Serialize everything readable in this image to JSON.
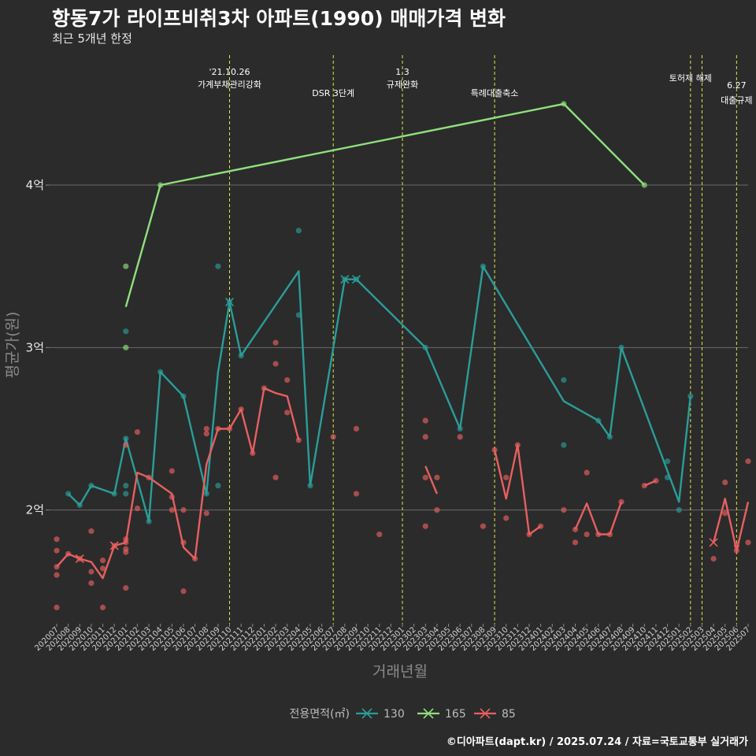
{
  "chart_data": {
    "type": "line",
    "title": "항동7가 라이프비취3차 아파트(1990) 매매가격 변화",
    "subtitle": "최근 5개년 한정",
    "xlabel": "거래년월",
    "ylabel": "평균가(원)",
    "y_ticks": [
      {
        "value": 2.0,
        "label": "2억"
      },
      {
        "value": 3.0,
        "label": "3억"
      },
      {
        "value": 4.0,
        "label": "4억"
      }
    ],
    "ylim": [
      1.3,
      4.8
    ],
    "ylim_unit": "억원",
    "categories": [
      "202007",
      "202008",
      "202009",
      "202010",
      "202011",
      "202012",
      "202101",
      "202102",
      "202103",
      "202104",
      "202105",
      "202106",
      "202107",
      "202108",
      "202109",
      "202110",
      "202111",
      "202112",
      "202201",
      "202202",
      "202203",
      "202204",
      "202205",
      "202206",
      "202207",
      "202208",
      "202209",
      "202210",
      "202211",
      "202212",
      "202301",
      "202302",
      "202303",
      "202304",
      "202305",
      "202306",
      "202307",
      "202308",
      "202309",
      "202310",
      "202311",
      "202312",
      "202401",
      "202402",
      "202403",
      "202404",
      "202405",
      "202406",
      "202407",
      "202408",
      "202409",
      "202410",
      "202411",
      "202412",
      "202501",
      "202502",
      "202503",
      "202504",
      "202505",
      "202506",
      "202507"
    ],
    "legend": {
      "title": "전용면적(㎡)",
      "position": "bottom"
    },
    "grid": true,
    "series": [
      {
        "name": "130",
        "color": "#2a9d99",
        "segments": [
          [
            [
              "202008",
              2.1
            ],
            [
              "202009",
              2.03
            ],
            [
              "202010",
              2.15
            ],
            [
              "202012",
              2.1
            ],
            [
              "202101",
              2.44
            ],
            [
              "202103",
              1.93
            ],
            [
              "202104",
              2.85
            ],
            [
              "202106",
              2.7
            ],
            [
              "202108",
              2.1
            ],
            [
              "202109",
              2.85
            ],
            [
              "202110",
              3.28
            ],
            [
              "202111",
              2.95
            ],
            [
              "202204",
              3.47
            ],
            [
              "202205",
              2.15
            ],
            [
              "202208",
              3.42
            ],
            [
              "202209",
              3.42
            ],
            [
              "202303",
              3.0
            ],
            [
              "202306",
              2.5
            ],
            [
              "202308",
              3.5
            ],
            [
              "202403",
              2.67
            ],
            [
              "202406",
              2.55
            ],
            [
              "202407",
              2.45
            ],
            [
              "202408",
              3.0
            ],
            [
              "202501",
              2.05
            ],
            [
              "202502",
              2.7
            ]
          ]
        ],
        "points": [
          [
            "202008",
            2.1
          ],
          [
            "202009",
            2.03
          ],
          [
            "202010",
            2.15
          ],
          [
            "202012",
            2.1
          ],
          [
            "202101",
            2.1
          ],
          [
            "202101",
            2.15
          ],
          [
            "202101",
            3.1
          ],
          [
            "202101",
            2.44
          ],
          [
            "202103",
            1.93
          ],
          [
            "202104",
            2.85
          ],
          [
            "202106",
            2.7
          ],
          [
            "202108",
            2.1
          ],
          [
            "202109",
            2.15
          ],
          [
            "202109",
            3.5
          ],
          [
            "202110",
            3.28
          ],
          [
            "202111",
            2.95
          ],
          [
            "202204",
            3.2
          ],
          [
            "202204",
            3.72
          ],
          [
            "202205",
            2.15
          ],
          [
            "202208",
            3.42
          ],
          [
            "202209",
            3.42
          ],
          [
            "202303",
            3.0
          ],
          [
            "202306",
            2.5
          ],
          [
            "202308",
            3.5
          ],
          [
            "202403",
            2.8
          ],
          [
            "202403",
            2.4
          ],
          [
            "202406",
            2.55
          ],
          [
            "202407",
            2.45
          ],
          [
            "202408",
            3.0
          ],
          [
            "202412",
            2.3
          ],
          [
            "202412",
            2.2
          ],
          [
            "202501",
            2.0
          ],
          [
            "202502",
            2.7
          ]
        ],
        "crosses": [
          [
            "202110",
            3.28
          ],
          [
            "202208",
            3.42
          ],
          [
            "202209",
            3.42
          ]
        ]
      },
      {
        "name": "165",
        "color": "#8fe07c",
        "segments": [
          [
            [
              "202101",
              3.25
            ],
            [
              "202104",
              4.0
            ],
            [
              "202403",
              4.5
            ],
            [
              "202410",
              4.0
            ]
          ]
        ],
        "points": [
          [
            "202101",
            3.0
          ],
          [
            "202101",
            3.5
          ],
          [
            "202104",
            4.0
          ],
          [
            "202403",
            4.5
          ],
          [
            "202410",
            4.0
          ]
        ],
        "crosses": []
      },
      {
        "name": "85",
        "color": "#e85f5f",
        "segments": [
          [
            [
              "202007",
              1.65
            ],
            [
              "202008",
              1.73
            ],
            [
              "202009",
              1.7
            ],
            [
              "202010",
              1.68
            ],
            [
              "202011",
              1.58
            ],
            [
              "202012",
              1.78
            ],
            [
              "202101",
              1.8
            ],
            [
              "202102",
              2.23
            ],
            [
              "202103",
              2.2
            ],
            [
              "202105",
              2.1
            ],
            [
              "202106",
              1.77
            ],
            [
              "202107",
              1.7
            ],
            [
              "202108",
              2.28
            ],
            [
              "202109",
              2.5
            ],
            [
              "202110",
              2.5
            ],
            [
              "202111",
              2.62
            ],
            [
              "202112",
              2.35
            ],
            [
              "202201",
              2.75
            ],
            [
              "202202",
              2.72
            ],
            [
              "202203",
              2.7
            ],
            [
              "202204",
              2.43
            ]
          ],
          [
            [
              "202303",
              2.27
            ],
            [
              "202304",
              2.1
            ]
          ],
          [
            [
              "202309",
              2.37
            ],
            [
              "202310",
              2.07
            ],
            [
              "202311",
              2.4
            ],
            [
              "202312",
              1.85
            ],
            [
              "202401",
              1.9
            ]
          ],
          [
            [
              "202404",
              1.88
            ],
            [
              "202405",
              2.04
            ],
            [
              "202406",
              1.85
            ],
            [
              "202407",
              1.85
            ],
            [
              "202408",
              2.05
            ]
          ],
          [
            [
              "202410",
              2.15
            ],
            [
              "202411",
              2.18
            ]
          ],
          [
            [
              "202504",
              1.8
            ],
            [
              "202505",
              2.07
            ],
            [
              "202506",
              1.75
            ],
            [
              "202507",
              2.05
            ]
          ]
        ],
        "points": [
          [
            "202007",
            1.82
          ],
          [
            "202007",
            1.75
          ],
          [
            "202007",
            1.65
          ],
          [
            "202007",
            1.6
          ],
          [
            "202007",
            1.4
          ],
          [
            "202008",
            1.73
          ],
          [
            "202009",
            1.7
          ],
          [
            "202010",
            1.87
          ],
          [
            "202010",
            1.62
          ],
          [
            "202010",
            1.55
          ],
          [
            "202011",
            1.69
          ],
          [
            "202011",
            1.64
          ],
          [
            "202011",
            1.4
          ],
          [
            "202012",
            1.78
          ],
          [
            "202101",
            1.82
          ],
          [
            "202101",
            1.8
          ],
          [
            "202101",
            1.76
          ],
          [
            "202101",
            1.74
          ],
          [
            "202101",
            1.52
          ],
          [
            "202101",
            2.4
          ],
          [
            "202102",
            2.48
          ],
          [
            "202102",
            2.01
          ],
          [
            "202103",
            2.2
          ],
          [
            "202105",
            2.24
          ],
          [
            "202105",
            2.08
          ],
          [
            "202105",
            2.0
          ],
          [
            "202106",
            2.0
          ],
          [
            "202106",
            1.8
          ],
          [
            "202106",
            1.5
          ],
          [
            "202107",
            1.7
          ],
          [
            "202108",
            2.5
          ],
          [
            "202108",
            2.47
          ],
          [
            "202108",
            1.98
          ],
          [
            "202109",
            2.5
          ],
          [
            "202110",
            2.5
          ],
          [
            "202111",
            2.62
          ],
          [
            "202112",
            2.35
          ],
          [
            "202201",
            2.75
          ],
          [
            "202202",
            3.03
          ],
          [
            "202202",
            2.9
          ],
          [
            "202202",
            2.2
          ],
          [
            "202203",
            2.8
          ],
          [
            "202203",
            2.6
          ],
          [
            "202204",
            2.43
          ],
          [
            "202207",
            2.45
          ],
          [
            "202209",
            2.5
          ],
          [
            "202209",
            2.1
          ],
          [
            "202211",
            1.85
          ],
          [
            "202303",
            2.55
          ],
          [
            "202303",
            2.45
          ],
          [
            "202303",
            2.2
          ],
          [
            "202303",
            1.9
          ],
          [
            "202304",
            2.2
          ],
          [
            "202304",
            2.0
          ],
          [
            "202306",
            2.45
          ],
          [
            "202308",
            1.9
          ],
          [
            "202309",
            2.37
          ],
          [
            "202310",
            2.2
          ],
          [
            "202310",
            1.95
          ],
          [
            "202311",
            2.4
          ],
          [
            "202312",
            1.85
          ],
          [
            "202401",
            1.9
          ],
          [
            "202403",
            2.0
          ],
          [
            "202404",
            1.88
          ],
          [
            "202404",
            1.8
          ],
          [
            "202405",
            2.23
          ],
          [
            "202405",
            1.85
          ],
          [
            "202406",
            1.85
          ],
          [
            "202407",
            1.85
          ],
          [
            "202408",
            2.05
          ],
          [
            "202410",
            2.15
          ],
          [
            "202411",
            2.18
          ],
          [
            "202504",
            1.7
          ],
          [
            "202505",
            2.17
          ],
          [
            "202505",
            1.98
          ],
          [
            "202506",
            1.75
          ],
          [
            "202506",
            1.78
          ],
          [
            "202507",
            2.3
          ],
          [
            "202507",
            1.8
          ]
        ],
        "crosses": [
          [
            "202009",
            1.7
          ],
          [
            "202012",
            1.78
          ],
          [
            "202504",
            1.8
          ]
        ]
      }
    ],
    "annotations": [
      {
        "x": "202110",
        "lines": [
          "'21.10.26",
          "가계부채관리강화"
        ]
      },
      {
        "x": "202207",
        "lines": [
          "DSR 3단계"
        ]
      },
      {
        "x": "202301",
        "lines": [
          "1.3",
          "규제완화"
        ]
      },
      {
        "x": "202309",
        "lines": [
          "특례대출축소"
        ]
      },
      {
        "x": "202502",
        "lines": [
          "토허제 해제"
        ]
      },
      {
        "x": "202503",
        "lines": []
      },
      {
        "x": "202506",
        "lines": [
          "6.27",
          "대출규제"
        ]
      }
    ]
  },
  "footer": "©디아파트(dapt.kr) / 2025.07.24 / 자료=국토교통부 실거래가"
}
